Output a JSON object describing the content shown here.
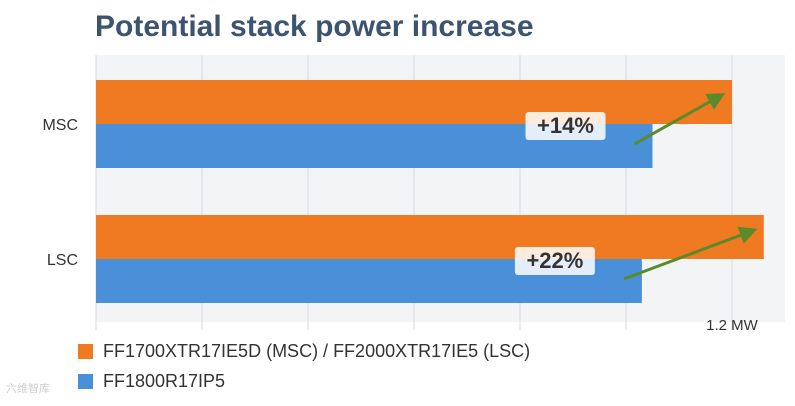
{
  "chart_data": {
    "type": "bar",
    "title": "Potential stack power increase",
    "categories": [
      "MSC",
      "LSC"
    ],
    "series": [
      {
        "name": "FF1700XTR17IE5D (MSC) / FF2000XTR17IE5 (LSC)",
        "color": "#f07a22",
        "values": [
          1.2,
          1.26
        ]
      },
      {
        "name": "FF1800R17IP5",
        "color": "#4a90d9",
        "values": [
          1.05,
          1.03
        ]
      }
    ],
    "annotations": [
      "+14%",
      "+22%"
    ],
    "tick_label": "1.2 MW",
    "xlim": [
      0,
      1.3
    ],
    "grid": true,
    "legend_position": "bottom-left"
  },
  "watermark": "六维智库"
}
